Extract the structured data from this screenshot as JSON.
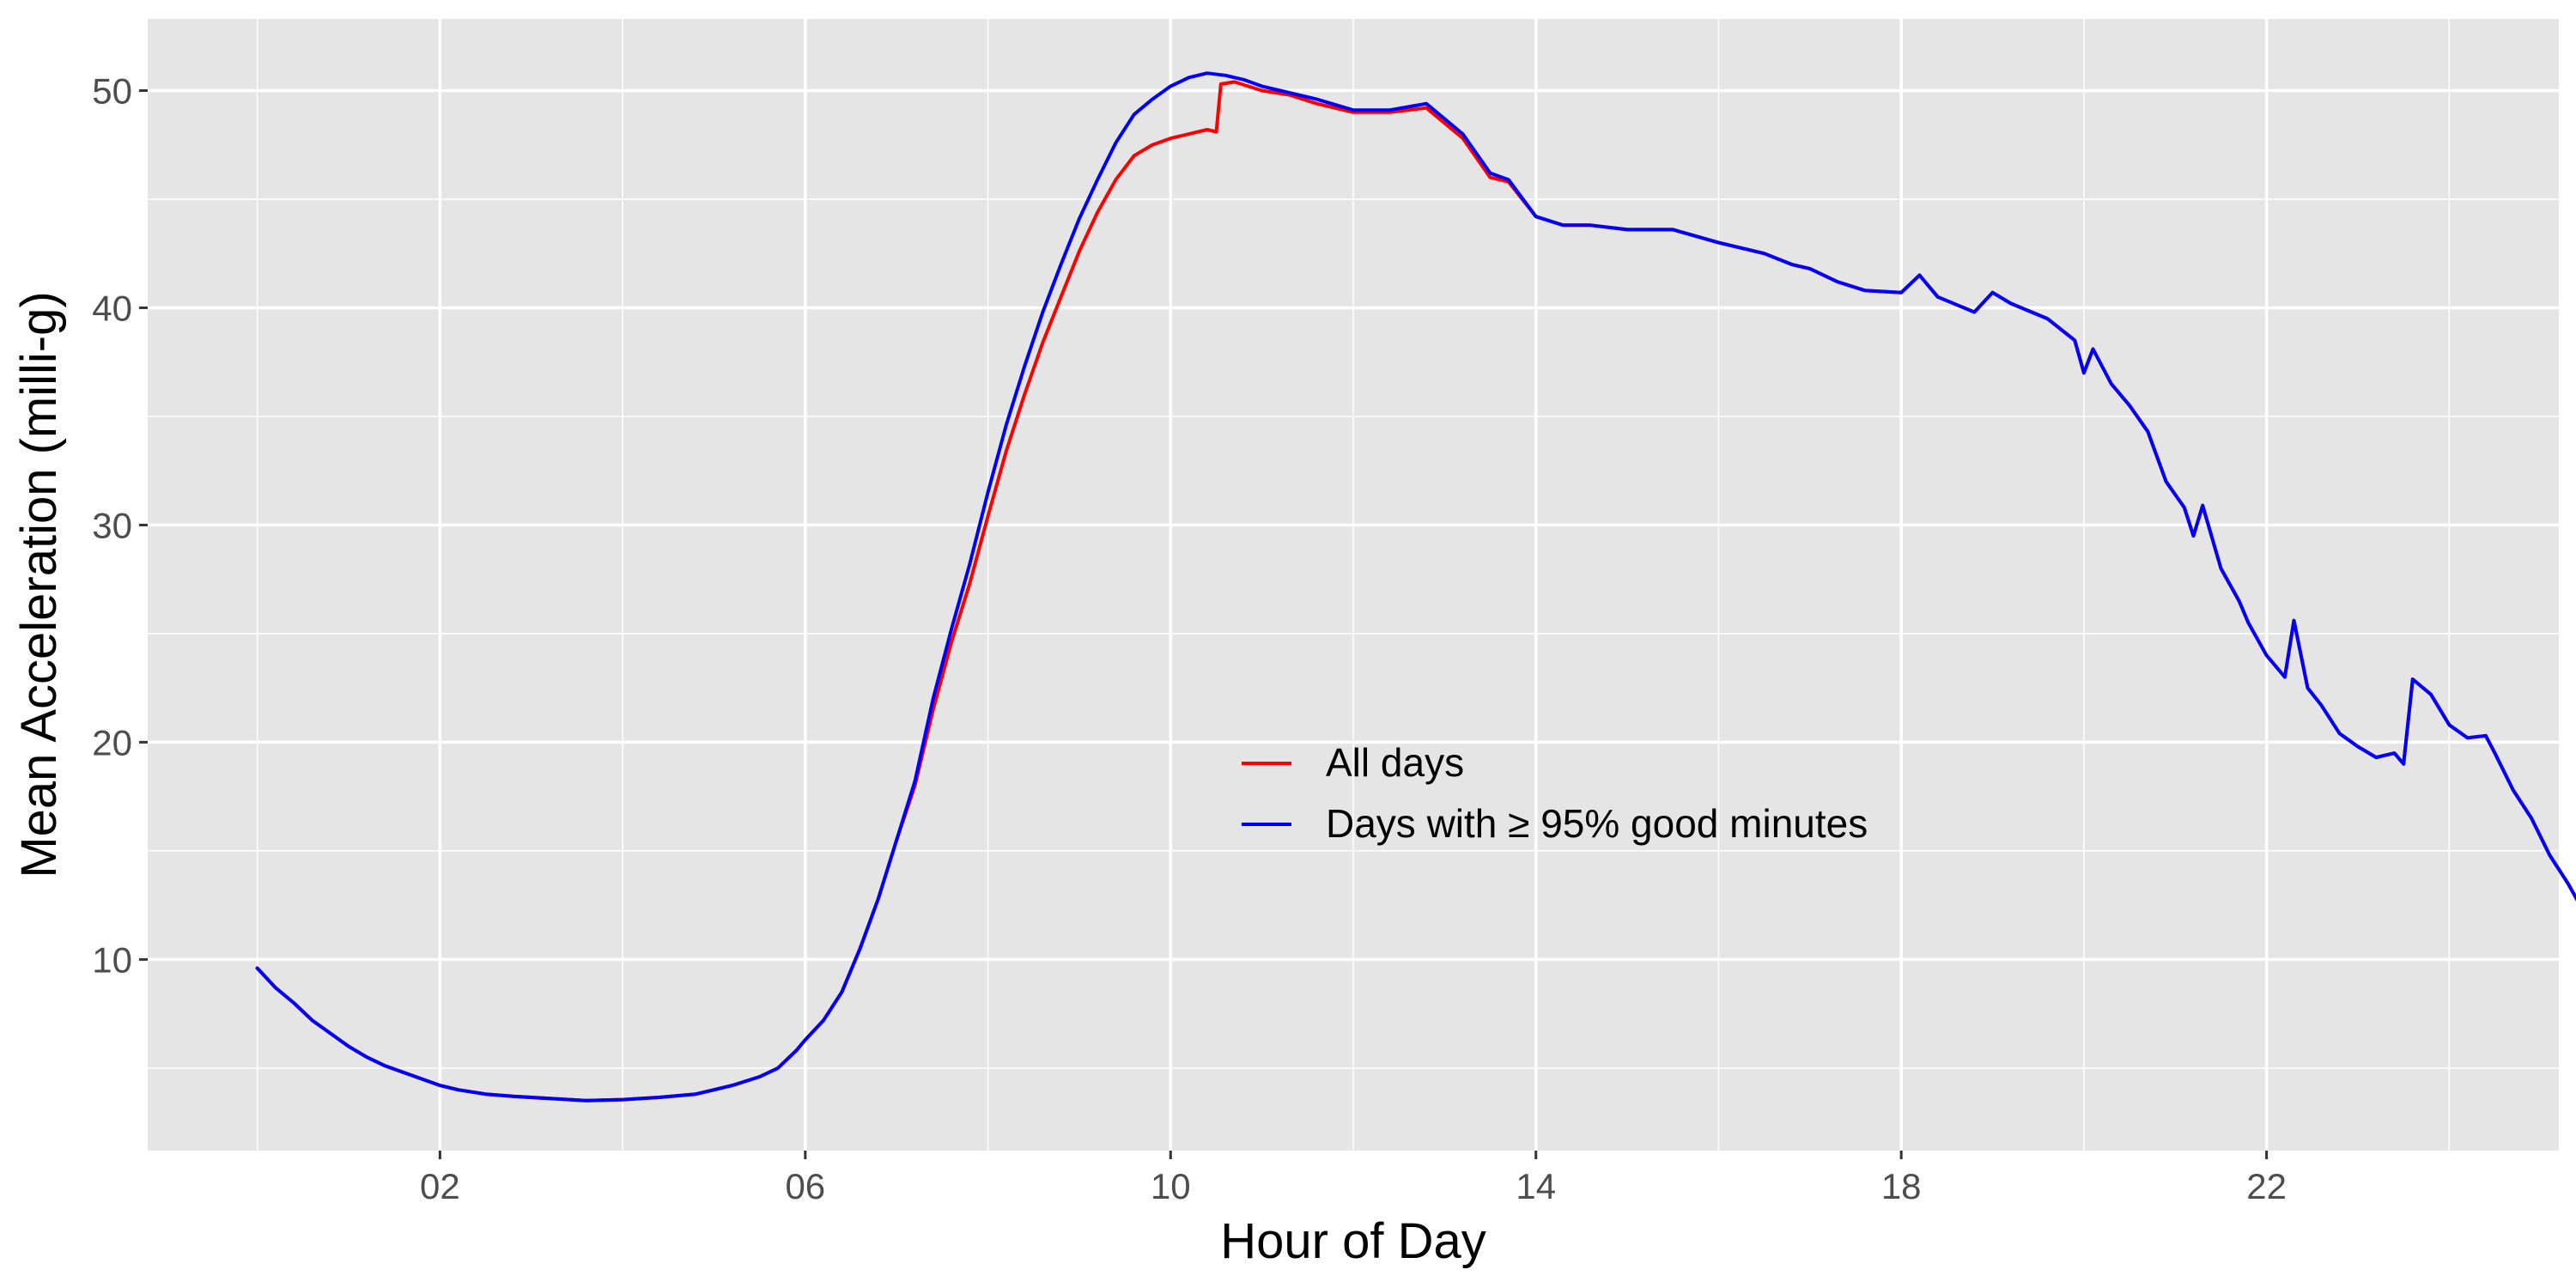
{
  "chart_data": {
    "type": "line",
    "title": "",
    "xlabel": "Hour of Day",
    "ylabel": "Mean Acceleration (milli-g)",
    "xlim": [
      -1.2,
      25.2
    ],
    "ylim": [
      1.2,
      53.3
    ],
    "x_ticks": [
      2,
      6,
      10,
      14,
      18,
      22
    ],
    "x_tick_labels": [
      "02",
      "06",
      "10",
      "14",
      "18",
      "22"
    ],
    "y_ticks": [
      10,
      20,
      30,
      40,
      50
    ],
    "y_tick_labels": [
      "10",
      "20",
      "30",
      "40",
      "50"
    ],
    "grid": true,
    "panel_background": "#e5e5e5",
    "grid_color": "#ffffff",
    "legend": {
      "placement": "inside-center-right",
      "entries": [
        "All days",
        "Days with ≥ 95% good minutes"
      ]
    },
    "series": [
      {
        "name": "All days",
        "color": "#ff0000",
        "points": [
          [
            0.0,
            9.6
          ],
          [
            0.2,
            8.7
          ],
          [
            0.4,
            8.0
          ],
          [
            0.6,
            7.2
          ],
          [
            0.8,
            6.6
          ],
          [
            1.0,
            6.0
          ],
          [
            1.2,
            5.5
          ],
          [
            1.4,
            5.1
          ],
          [
            1.6,
            4.8
          ],
          [
            1.8,
            4.5
          ],
          [
            2.0,
            4.2
          ],
          [
            2.2,
            4.0
          ],
          [
            2.5,
            3.8
          ],
          [
            2.8,
            3.7
          ],
          [
            3.2,
            3.6
          ],
          [
            3.6,
            3.5
          ],
          [
            4.0,
            3.55
          ],
          [
            4.4,
            3.65
          ],
          [
            4.8,
            3.8
          ],
          [
            5.0,
            4.0
          ],
          [
            5.2,
            4.2
          ],
          [
            5.5,
            4.6
          ],
          [
            5.7,
            5.0
          ],
          [
            5.9,
            5.8
          ],
          [
            6.0,
            6.3
          ],
          [
            6.2,
            7.2
          ],
          [
            6.4,
            8.5
          ],
          [
            6.5,
            9.5
          ],
          [
            6.6,
            10.5
          ],
          [
            6.8,
            12.8
          ],
          [
            7.0,
            15.5
          ],
          [
            7.2,
            18.0
          ],
          [
            7.4,
            21.5
          ],
          [
            7.6,
            24.6
          ],
          [
            7.8,
            27.3
          ],
          [
            8.0,
            30.4
          ],
          [
            8.2,
            33.4
          ],
          [
            8.4,
            36.0
          ],
          [
            8.6,
            38.4
          ],
          [
            8.8,
            40.5
          ],
          [
            9.0,
            42.6
          ],
          [
            9.2,
            44.4
          ],
          [
            9.4,
            45.9
          ],
          [
            9.6,
            47.0
          ],
          [
            9.8,
            47.5
          ],
          [
            10.0,
            47.8
          ],
          [
            10.2,
            48.0
          ],
          [
            10.4,
            48.2
          ],
          [
            10.5,
            48.1
          ],
          [
            10.55,
            50.3
          ],
          [
            10.7,
            50.4
          ],
          [
            11.0,
            50.0
          ],
          [
            11.3,
            49.8
          ],
          [
            11.6,
            49.4
          ],
          [
            12.0,
            49.0
          ],
          [
            12.4,
            49.0
          ],
          [
            12.8,
            49.2
          ],
          [
            13.0,
            48.5
          ],
          [
            13.2,
            47.8
          ],
          [
            13.5,
            46.0
          ],
          [
            13.7,
            45.8
          ],
          [
            14.0,
            44.2
          ],
          [
            14.3,
            43.8
          ],
          [
            14.6,
            43.8
          ],
          [
            15.0,
            43.6
          ],
          [
            15.5,
            43.6
          ],
          [
            16.0,
            43.0
          ],
          [
            16.5,
            42.5
          ],
          [
            16.8,
            42.0
          ],
          [
            17.0,
            41.8
          ],
          [
            17.3,
            41.2
          ],
          [
            17.6,
            40.8
          ],
          [
            18.0,
            40.7
          ],
          [
            18.2,
            41.5
          ],
          [
            18.4,
            40.5
          ],
          [
            18.8,
            39.8
          ],
          [
            19.0,
            40.7
          ],
          [
            19.2,
            40.2
          ],
          [
            19.6,
            39.5
          ],
          [
            19.9,
            38.5
          ],
          [
            20.0,
            37.0
          ],
          [
            20.1,
            38.1
          ],
          [
            20.3,
            36.5
          ],
          [
            20.5,
            35.5
          ],
          [
            20.7,
            34.3
          ],
          [
            20.9,
            32.0
          ],
          [
            21.1,
            30.8
          ],
          [
            21.2,
            29.5
          ],
          [
            21.3,
            30.9
          ],
          [
            21.5,
            28.0
          ],
          [
            21.7,
            26.5
          ],
          [
            21.8,
            25.5
          ],
          [
            22.0,
            24.0
          ],
          [
            22.2,
            23.0
          ],
          [
            22.3,
            25.6
          ],
          [
            22.45,
            22.5
          ],
          [
            22.6,
            21.7
          ],
          [
            22.8,
            20.4
          ],
          [
            23.0,
            19.8
          ],
          [
            23.2,
            19.3
          ],
          [
            23.4,
            19.5
          ],
          [
            23.5,
            19.0
          ],
          [
            23.6,
            22.9
          ],
          [
            23.8,
            22.2
          ],
          [
            24.0,
            20.8
          ],
          [
            24.2,
            20.2
          ],
          [
            24.4,
            20.3
          ],
          [
            24.5,
            19.5
          ],
          [
            24.7,
            17.8
          ],
          [
            24.9,
            16.5
          ],
          [
            25.1,
            14.8
          ],
          [
            25.3,
            13.5
          ],
          [
            25.5,
            12.0
          ],
          [
            25.7,
            10.9
          ],
          [
            25.9,
            9.7
          ]
        ]
      },
      {
        "name": "Days with ≥ 95% good minutes",
        "color": "#0000ff",
        "points": [
          [
            0.0,
            9.6
          ],
          [
            0.2,
            8.7
          ],
          [
            0.4,
            8.0
          ],
          [
            0.6,
            7.2
          ],
          [
            0.8,
            6.6
          ],
          [
            1.0,
            6.0
          ],
          [
            1.2,
            5.5
          ],
          [
            1.4,
            5.1
          ],
          [
            1.6,
            4.8
          ],
          [
            1.8,
            4.5
          ],
          [
            2.0,
            4.2
          ],
          [
            2.2,
            4.0
          ],
          [
            2.5,
            3.8
          ],
          [
            2.8,
            3.7
          ],
          [
            3.2,
            3.6
          ],
          [
            3.6,
            3.5
          ],
          [
            4.0,
            3.55
          ],
          [
            4.4,
            3.65
          ],
          [
            4.8,
            3.8
          ],
          [
            5.0,
            4.0
          ],
          [
            5.2,
            4.2
          ],
          [
            5.5,
            4.6
          ],
          [
            5.7,
            5.0
          ],
          [
            5.9,
            5.8
          ],
          [
            6.0,
            6.3
          ],
          [
            6.2,
            7.2
          ],
          [
            6.4,
            8.5
          ],
          [
            6.5,
            9.5
          ],
          [
            6.6,
            10.5
          ],
          [
            6.8,
            12.8
          ],
          [
            7.0,
            15.5
          ],
          [
            7.2,
            18.2
          ],
          [
            7.4,
            22.0
          ],
          [
            7.6,
            25.2
          ],
          [
            7.8,
            28.2
          ],
          [
            8.0,
            31.5
          ],
          [
            8.2,
            34.6
          ],
          [
            8.4,
            37.3
          ],
          [
            8.6,
            39.8
          ],
          [
            8.8,
            42.0
          ],
          [
            9.0,
            44.1
          ],
          [
            9.2,
            45.9
          ],
          [
            9.4,
            47.6
          ],
          [
            9.6,
            48.9
          ],
          [
            9.8,
            49.6
          ],
          [
            10.0,
            50.2
          ],
          [
            10.2,
            50.6
          ],
          [
            10.4,
            50.8
          ],
          [
            10.6,
            50.7
          ],
          [
            10.8,
            50.5
          ],
          [
            11.0,
            50.2
          ],
          [
            11.3,
            49.9
          ],
          [
            11.6,
            49.6
          ],
          [
            12.0,
            49.1
          ],
          [
            12.4,
            49.1
          ],
          [
            12.8,
            49.4
          ],
          [
            13.0,
            48.7
          ],
          [
            13.2,
            48.0
          ],
          [
            13.5,
            46.2
          ],
          [
            13.7,
            45.9
          ],
          [
            14.0,
            44.2
          ],
          [
            14.3,
            43.8
          ],
          [
            14.6,
            43.8
          ],
          [
            15.0,
            43.6
          ],
          [
            15.5,
            43.6
          ],
          [
            16.0,
            43.0
          ],
          [
            16.5,
            42.5
          ],
          [
            16.8,
            42.0
          ],
          [
            17.0,
            41.8
          ],
          [
            17.3,
            41.2
          ],
          [
            17.6,
            40.8
          ],
          [
            18.0,
            40.7
          ],
          [
            18.2,
            41.5
          ],
          [
            18.4,
            40.5
          ],
          [
            18.8,
            39.8
          ],
          [
            19.0,
            40.7
          ],
          [
            19.2,
            40.2
          ],
          [
            19.6,
            39.5
          ],
          [
            19.9,
            38.5
          ],
          [
            20.0,
            37.0
          ],
          [
            20.1,
            38.1
          ],
          [
            20.3,
            36.5
          ],
          [
            20.5,
            35.5
          ],
          [
            20.7,
            34.3
          ],
          [
            20.9,
            32.0
          ],
          [
            21.1,
            30.8
          ],
          [
            21.2,
            29.5
          ],
          [
            21.3,
            30.9
          ],
          [
            21.5,
            28.0
          ],
          [
            21.7,
            26.5
          ],
          [
            21.8,
            25.5
          ],
          [
            22.0,
            24.0
          ],
          [
            22.2,
            23.0
          ],
          [
            22.3,
            25.6
          ],
          [
            22.45,
            22.5
          ],
          [
            22.6,
            21.7
          ],
          [
            22.8,
            20.4
          ],
          [
            23.0,
            19.8
          ],
          [
            23.2,
            19.3
          ],
          [
            23.4,
            19.5
          ],
          [
            23.5,
            19.0
          ],
          [
            23.6,
            22.9
          ],
          [
            23.8,
            22.2
          ],
          [
            24.0,
            20.8
          ],
          [
            24.2,
            20.2
          ],
          [
            24.4,
            20.3
          ],
          [
            24.5,
            19.5
          ],
          [
            24.7,
            17.8
          ],
          [
            24.9,
            16.5
          ],
          [
            25.1,
            14.8
          ],
          [
            25.3,
            13.5
          ],
          [
            25.5,
            12.0
          ],
          [
            25.7,
            10.9
          ],
          [
            25.9,
            9.7
          ]
        ]
      }
    ]
  }
}
